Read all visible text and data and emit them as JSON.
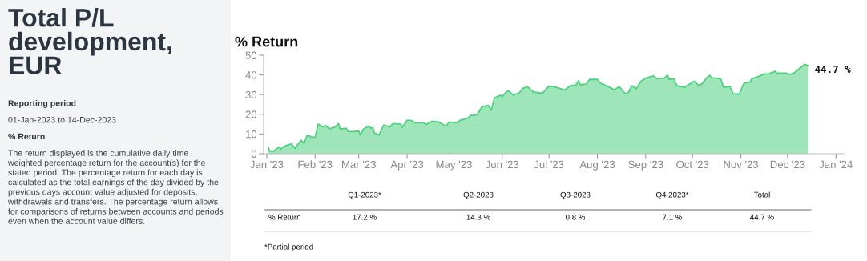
{
  "chart_data": [
    {
      "type": "other",
      "title": "Total P/L development, EUR",
      "annotations": [
        "Reporting period",
        "01-Jan-2023 to 14-Dec-2023",
        "% Return",
        "The return displayed is the cumulative daily time weighted percentage return for the account(s) for the stated period. The percentage return for each day is calculated as the total earnings of the day divided by the previous days account value adjusted for deposits, withdrawals and transfers. The percentage return allows for comparisons of returns between accounts and periods even when the account value differs."
      ]
    },
    {
      "type": "area",
      "title": "% Return",
      "x": [
        "2023-01-02",
        "2023-01-03",
        "2023-01-05",
        "2023-01-09",
        "2023-01-10",
        "2023-01-12",
        "2023-01-17",
        "2023-01-19",
        "2023-01-23",
        "2023-01-25",
        "2023-01-27",
        "2023-01-30",
        "2023-02-01",
        "2023-02-03",
        "2023-02-06",
        "2023-02-08",
        "2023-02-10",
        "2023-02-14",
        "2023-02-16",
        "2023-02-17",
        "2023-02-21",
        "2023-02-22",
        "2023-02-26",
        "2023-03-01",
        "2023-03-02",
        "2023-03-04",
        "2023-03-07",
        "2023-03-09",
        "2023-03-10",
        "2023-03-11",
        "2023-03-14",
        "2023-03-17",
        "2023-03-21",
        "2023-03-23",
        "2023-03-28",
        "2023-03-29",
        "2023-04-01",
        "2023-04-04",
        "2023-04-06",
        "2023-04-12",
        "2023-04-13",
        "2023-04-17",
        "2023-04-21",
        "2023-04-26",
        "2023-04-28",
        "2023-05-03",
        "2023-05-05",
        "2023-05-10",
        "2023-05-12",
        "2023-05-16",
        "2023-05-19",
        "2023-05-23",
        "2023-05-25",
        "2023-05-27",
        "2023-05-31",
        "2023-06-01",
        "2023-06-03",
        "2023-06-05",
        "2023-06-08",
        "2023-06-12",
        "2023-06-14",
        "2023-06-17",
        "2023-06-21",
        "2023-06-27",
        "2023-06-29",
        "2023-07-01",
        "2023-07-04",
        "2023-07-11",
        "2023-07-15",
        "2023-07-18",
        "2023-07-20",
        "2023-07-21",
        "2023-07-25",
        "2023-07-27",
        "2023-08-01",
        "2023-08-03",
        "2023-08-09",
        "2023-08-12",
        "2023-08-15",
        "2023-08-19",
        "2023-08-21",
        "2023-08-23",
        "2023-08-26",
        "2023-08-29",
        "2023-09-01",
        "2023-09-06",
        "2023-09-08",
        "2023-09-13",
        "2023-09-15",
        "2023-09-16",
        "2023-09-19",
        "2023-09-21",
        "2023-09-26",
        "2023-10-02",
        "2023-10-05",
        "2023-10-07",
        "2023-10-10",
        "2023-10-12",
        "2023-10-13",
        "2023-10-19",
        "2023-10-21",
        "2023-10-25",
        "2023-10-27",
        "2023-10-31",
        "2023-11-03",
        "2023-11-07",
        "2023-11-08",
        "2023-11-12",
        "2023-11-16",
        "2023-11-19",
        "2023-11-23",
        "2023-11-24",
        "2023-11-30",
        "2023-12-02",
        "2023-12-05",
        "2023-12-08",
        "2023-12-12",
        "2023-12-14"
      ],
      "series": [
        {
          "color": "#4fd17f",
          "values": [
            3.1,
            1.4,
            1.1,
            3.4,
            2.3,
            3.7,
            5.0,
            2.7,
            6.8,
            5.4,
            9.5,
            8.4,
            8.4,
            15.0,
            13.6,
            14.3,
            12.7,
            13.6,
            15.3,
            12.5,
            12.9,
            11.3,
            11.2,
            11.6,
            9.5,
            12.5,
            13.9,
            12.9,
            13.4,
            10.5,
            9.5,
            14.6,
            13.6,
            15.3,
            15.0,
            13.4,
            17.0,
            16.8,
            15.7,
            15.7,
            14.7,
            16.5,
            16.1,
            14.0,
            16.1,
            15.7,
            17.0,
            18.1,
            19.5,
            19.8,
            23.8,
            24.5,
            22.2,
            28.3,
            29.7,
            29.0,
            30.9,
            32.0,
            29.7,
            30.9,
            33.1,
            34.1,
            31.3,
            30.7,
            32.7,
            34.3,
            34.1,
            32.3,
            34.7,
            34.7,
            37.1,
            35.0,
            35.4,
            37.7,
            37.7,
            35.8,
            33.7,
            32.4,
            34.1,
            30.4,
            31.2,
            34.5,
            33.0,
            36.8,
            38.4,
            39.5,
            38.1,
            38.4,
            39.9,
            37.7,
            38.1,
            34.5,
            33.7,
            36.8,
            34.7,
            35.4,
            38.4,
            39.8,
            38.6,
            38.1,
            33.7,
            34.1,
            30.4,
            30.2,
            35.8,
            36.4,
            38.1,
            39.1,
            40.5,
            40.5,
            41.8,
            40.9,
            40.9,
            40.2,
            40.9,
            42.9,
            45.4,
            44.7
          ]
        }
      ],
      "xlim": [
        "2022-12-30",
        "2024-01-06"
      ],
      "xticks": [
        {
          "value": "2023-01-01",
          "label": "Jan '23"
        },
        {
          "value": "2023-02-01",
          "label": "Feb '23"
        },
        {
          "value": "2023-03-01",
          "label": "Mar '23"
        },
        {
          "value": "2023-04-01",
          "label": "Apr '23"
        },
        {
          "value": "2023-05-01",
          "label": "May '23"
        },
        {
          "value": "2023-06-01",
          "label": "Jun '23"
        },
        {
          "value": "2023-07-01",
          "label": "Jul '23"
        },
        {
          "value": "2023-08-01",
          "label": "Aug '23"
        },
        {
          "value": "2023-09-01",
          "label": "Sep '23"
        },
        {
          "value": "2023-10-01",
          "label": "Oct '23"
        },
        {
          "value": "2023-11-01",
          "label": "Nov '23"
        },
        {
          "value": "2023-12-01",
          "label": "Dec '23"
        },
        {
          "value": "2024-01-01",
          "label": "Jan '24"
        }
      ],
      "ylim": [
        0,
        50
      ],
      "yticks": [
        0,
        10,
        20,
        30,
        40,
        50
      ],
      "grid": false,
      "legend": false,
      "annotations": [
        {
          "text": "44.7 %",
          "x": "2023-12-14",
          "y": 44.7
        }
      ]
    },
    {
      "type": "other",
      "categories": [
        "Q1-2023*",
        "Q2-2023",
        "Q3-2023",
        "Q4 2023*",
        "Total"
      ],
      "ylabel": "% Return",
      "value_labels": [
        "17.2 %",
        "14.3 %",
        "0.8 %",
        "7.1 %",
        "44.7 %"
      ],
      "annotations": [
        "*Partial period"
      ]
    }
  ]
}
